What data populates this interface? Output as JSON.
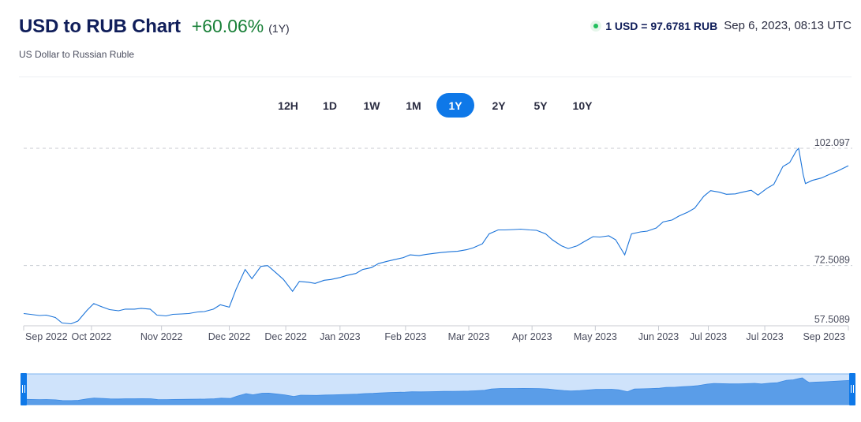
{
  "header": {
    "title": "USD to RUB Chart",
    "change": "+60.06%",
    "period": "(1Y)",
    "subtitle": "US Dollar to Russian Ruble"
  },
  "rate": {
    "value": "1 USD = 97.6781 RUB",
    "timestamp": "Sep 6, 2023, 08:13 UTC"
  },
  "ranges": {
    "options": [
      "12H",
      "1D",
      "1W",
      "1M",
      "1Y",
      "2Y",
      "5Y",
      "10Y"
    ],
    "selected": "1Y"
  },
  "colors": {
    "line": "#1a73d9",
    "navigator_fill": "#5a9de8",
    "navigator_bg": "#cfe3fb",
    "active_button": "#0e78e8",
    "positive": "#198038"
  },
  "chart_data": {
    "type": "line",
    "series": [
      {
        "name": "USD/RUB",
        "x": [
          "2022-09-06",
          "2022-09-09",
          "2022-09-13",
          "2022-09-16",
          "2022-09-20",
          "2022-09-23",
          "2022-09-27",
          "2022-09-30",
          "2022-10-04",
          "2022-10-07",
          "2022-10-11",
          "2022-10-14",
          "2022-10-18",
          "2022-10-21",
          "2022-10-25",
          "2022-10-28",
          "2022-11-01",
          "2022-11-04",
          "2022-11-08",
          "2022-11-11",
          "2022-11-15",
          "2022-11-18",
          "2022-11-22",
          "2022-11-25",
          "2022-11-29",
          "2022-12-02",
          "2022-12-06",
          "2022-12-09",
          "2022-12-13",
          "2022-12-16",
          "2022-12-20",
          "2022-12-23",
          "2022-12-27",
          "2022-12-30",
          "2023-01-03",
          "2023-01-06",
          "2023-01-10",
          "2023-01-13",
          "2023-01-17",
          "2023-01-20",
          "2023-01-24",
          "2023-01-27",
          "2023-01-31",
          "2023-02-03",
          "2023-02-07",
          "2023-02-10",
          "2023-02-14",
          "2023-02-17",
          "2023-02-21",
          "2023-02-24",
          "2023-02-28",
          "2023-03-03",
          "2023-03-07",
          "2023-03-10",
          "2023-03-14",
          "2023-03-17",
          "2023-03-21",
          "2023-03-24",
          "2023-03-28",
          "2023-03-31",
          "2023-04-04",
          "2023-04-07",
          "2023-04-11",
          "2023-04-14",
          "2023-04-18",
          "2023-04-21",
          "2023-04-25",
          "2023-04-28",
          "2023-05-02",
          "2023-05-05",
          "2023-05-09",
          "2023-05-12",
          "2023-05-16",
          "2023-05-19",
          "2023-05-23",
          "2023-05-26",
          "2023-05-30",
          "2023-06-02",
          "2023-06-06",
          "2023-06-09",
          "2023-06-13",
          "2023-06-16",
          "2023-06-20",
          "2023-06-23",
          "2023-06-27",
          "2023-06-30",
          "2023-07-04",
          "2023-07-07",
          "2023-07-11",
          "2023-07-14",
          "2023-07-18",
          "2023-07-21",
          "2023-07-25",
          "2023-07-28",
          "2023-08-01",
          "2023-08-04",
          "2023-08-08",
          "2023-08-11",
          "2023-08-14",
          "2023-08-15",
          "2023-08-17",
          "2023-08-18",
          "2023-08-21",
          "2023-08-25",
          "2023-08-29",
          "2023-09-01",
          "2023-09-06"
        ],
        "values": [
          60.4,
          60.2,
          59.9,
          60.0,
          59.4,
          58.0,
          57.8,
          58.5,
          61.2,
          62.9,
          62.0,
          61.4,
          61.1,
          61.5,
          61.5,
          61.7,
          61.5,
          60.0,
          59.8,
          60.2,
          60.3,
          60.4,
          60.8,
          60.9,
          61.5,
          62.6,
          62.0,
          66.5,
          71.5,
          69.2,
          72.3,
          72.5,
          70.5,
          69.0,
          66.0,
          68.5,
          68.3,
          68.0,
          68.8,
          69.0,
          69.5,
          70.0,
          70.5,
          71.5,
          72.0,
          73.0,
          73.6,
          74.0,
          74.5,
          75.2,
          75.0,
          75.3,
          75.6,
          75.8,
          76.0,
          76.1,
          76.5,
          77.0,
          78.0,
          80.5,
          81.5,
          81.5,
          81.6,
          81.7,
          81.5,
          81.4,
          80.5,
          79.0,
          77.5,
          76.8,
          77.5,
          78.5,
          79.8,
          79.7,
          80.0,
          79.0,
          75.2,
          80.5,
          81.0,
          81.2,
          82.0,
          83.5,
          84.0,
          85.0,
          86.0,
          87.0,
          90.0,
          91.4,
          91.0,
          90.5,
          90.6,
          91.0,
          91.5,
          90.3,
          92.0,
          93.0,
          97.5,
          98.5,
          101.5,
          102.1,
          95.5,
          93.2,
          94.0,
          94.6,
          95.6,
          96.3,
          97.7
        ]
      }
    ],
    "y_ticks": [
      "102.097",
      "72.5089",
      "57.5089"
    ],
    "y_tick_values": [
      102.097,
      72.5089,
      57.5089
    ],
    "x_ticks": [
      "Sep 2022",
      "Oct 2022",
      "Nov 2022",
      "Dec 2022",
      "Dec 2022",
      "Jan 2023",
      "Feb 2023",
      "Mar 2023",
      "Apr 2023",
      "May 2023",
      "Jun 2023",
      "Jul 2023",
      "Jul 2023",
      "Sep 2023"
    ],
    "x_tick_dates": [
      "2022-09-06",
      "2022-10-06",
      "2022-11-06",
      "2022-12-06",
      "2022-12-31",
      "2023-01-24",
      "2023-02-22",
      "2023-03-22",
      "2023-04-19",
      "2023-05-17",
      "2023-06-14",
      "2023-07-06",
      "2023-07-31",
      "2023-09-06"
    ],
    "ylim": [
      57.5089,
      102.097
    ],
    "grid": true,
    "navigator": true
  }
}
